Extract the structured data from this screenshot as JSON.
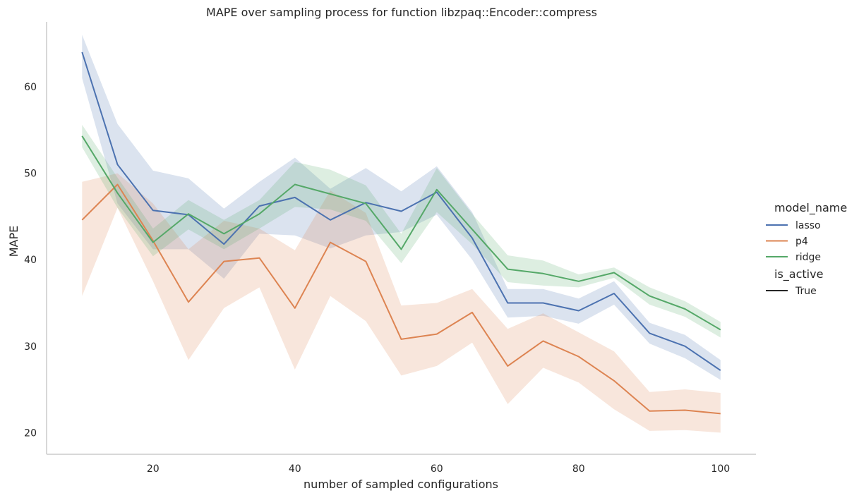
{
  "chart_data": {
    "type": "line",
    "title": "MAPE over sampling process for function libzpaq::Encoder::compress",
    "xlabel": "number of sampled configurations",
    "ylabel": "MAPE",
    "xlim": [
      5,
      105
    ],
    "ylim": [
      17.5,
      67.5
    ],
    "xticks": [
      "20",
      "40",
      "60",
      "80",
      "100"
    ],
    "yticks": [
      "20",
      "30",
      "40",
      "50",
      "60"
    ],
    "grid": false,
    "x": [
      10,
      15,
      20,
      25,
      30,
      35,
      40,
      45,
      50,
      55,
      60,
      65,
      70,
      75,
      80,
      85,
      90,
      95,
      100
    ],
    "legend": {
      "placement": "right",
      "hue_title": "model_name",
      "style_title": "is_active",
      "style_entries": [
        "True"
      ]
    },
    "series": [
      {
        "name": "lasso",
        "color": "#4c72b0",
        "values": [
          64.0,
          51.0,
          45.7,
          45.2,
          41.8,
          46.2,
          47.2,
          44.6,
          46.6,
          45.6,
          47.8,
          42.5,
          35.0,
          35.0,
          34.1,
          36.1,
          31.5,
          30.0,
          27.2
        ],
        "ci_lower": [
          61.0,
          46.5,
          41.2,
          41.2,
          37.8,
          43.0,
          42.8,
          41.3,
          42.8,
          43.2,
          45.2,
          40.0,
          33.3,
          33.5,
          32.6,
          34.8,
          30.3,
          28.6,
          26.1
        ],
        "ci_upper": [
          66.0,
          55.7,
          50.3,
          49.4,
          45.9,
          49.0,
          51.8,
          48.2,
          50.6,
          47.9,
          50.8,
          45.5,
          36.6,
          36.6,
          35.5,
          37.5,
          32.7,
          31.3,
          28.4
        ]
      },
      {
        "name": "p4",
        "color": "#dd8452",
        "values": [
          44.6,
          48.7,
          42.2,
          35.1,
          39.8,
          40.2,
          34.4,
          42.0,
          39.8,
          30.8,
          31.4,
          33.9,
          27.7,
          30.6,
          28.8,
          26.0,
          22.5,
          22.6,
          22.2
        ],
        "ci_lower": [
          35.8,
          46.0,
          37.5,
          28.4,
          34.4,
          36.8,
          27.3,
          35.8,
          32.9,
          26.6,
          27.7,
          30.4,
          23.3,
          27.5,
          25.8,
          22.7,
          20.2,
          20.3,
          20.0
        ],
        "ci_upper": [
          49.0,
          50.0,
          46.5,
          41.2,
          44.5,
          43.6,
          41.1,
          48.0,
          45.4,
          34.7,
          35.0,
          36.6,
          32.0,
          33.8,
          31.6,
          29.4,
          24.7,
          25.0,
          24.6
        ]
      },
      {
        "name": "ridge",
        "color": "#55a868",
        "values": [
          54.3,
          47.7,
          42.0,
          45.3,
          43.0,
          45.3,
          48.7,
          47.6,
          46.5,
          41.2,
          48.1,
          43.5,
          38.9,
          38.4,
          37.5,
          38.5,
          35.8,
          34.3,
          31.9
        ],
        "ci_lower": [
          53.0,
          46.0,
          40.4,
          43.5,
          41.2,
          43.6,
          46.1,
          45.8,
          44.5,
          39.6,
          45.5,
          41.8,
          37.4,
          37.0,
          36.8,
          37.9,
          34.8,
          33.4,
          31.0
        ],
        "ci_upper": [
          55.6,
          49.5,
          43.6,
          46.9,
          44.6,
          46.9,
          51.3,
          50.4,
          48.6,
          43.0,
          50.6,
          45.3,
          40.5,
          39.9,
          38.3,
          39.1,
          36.8,
          35.2,
          32.8
        ]
      }
    ]
  }
}
